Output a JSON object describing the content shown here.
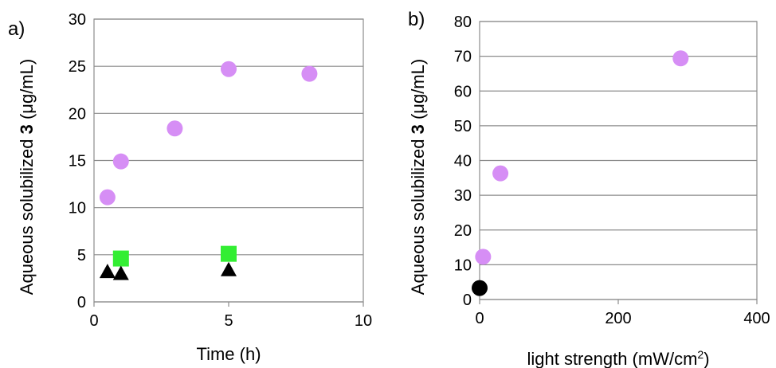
{
  "chart_data": [
    {
      "type": "scatter",
      "panel_label": "a)",
      "xlabel": "Time (h)",
      "ylabel_parts": [
        "Aqueous solubilized ",
        "3",
        " (μg/mL)"
      ],
      "xlim": [
        0,
        10
      ],
      "ylim": [
        0,
        30
      ],
      "xticks": [
        "0",
        "5",
        "10"
      ],
      "yticks": [
        "0",
        "5",
        "10",
        "15",
        "20",
        "25",
        "30"
      ],
      "grid": "horizontal",
      "series": [
        {
          "marker": "circle",
          "color": "#d68ef5",
          "x": [
            0.5,
            1,
            3,
            5,
            8
          ],
          "y": [
            11.1,
            14.9,
            18.4,
            24.7,
            24.2
          ]
        },
        {
          "marker": "square",
          "color": "#33ee33",
          "x": [
            1,
            5
          ],
          "y": [
            4.6,
            5.1
          ]
        },
        {
          "marker": "triangle",
          "color": "#000000",
          "x": [
            0.5,
            1,
            5
          ],
          "y": [
            3.2,
            3.0,
            3.4
          ]
        }
      ]
    },
    {
      "type": "scatter",
      "panel_label": "b)",
      "xlabel_main": "light strength (mW/cm",
      "xlabel_sup": "2",
      "xlabel_end": ")",
      "ylabel_parts": [
        "Aqueous solubilized ",
        "3",
        " (μg/mL)"
      ],
      "xlim": [
        0,
        400
      ],
      "ylim": [
        0,
        80
      ],
      "xticks": [
        "0",
        "200",
        "400"
      ],
      "yticks": [
        "0",
        "10",
        "20",
        "30",
        "40",
        "50",
        "60",
        "70",
        "80"
      ],
      "grid": "horizontal",
      "series": [
        {
          "marker": "circle",
          "color": "#d68ef5",
          "x": [
            5,
            30,
            290
          ],
          "y": [
            12.3,
            36.3,
            69.4
          ]
        },
        {
          "marker": "circle",
          "color": "#000000",
          "x": [
            0
          ],
          "y": [
            3.3
          ]
        }
      ]
    }
  ]
}
